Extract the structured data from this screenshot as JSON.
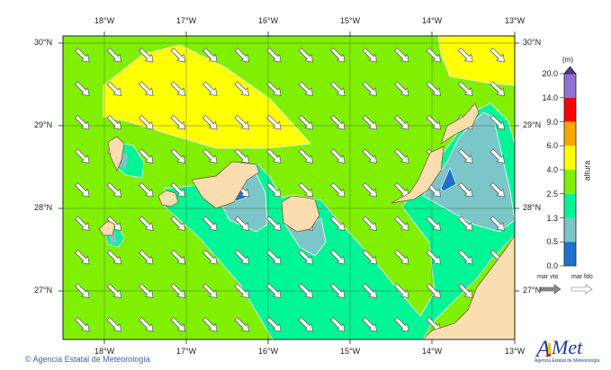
{
  "map": {
    "lon_labels": [
      "18°W",
      "17°W",
      "16°W",
      "15°W",
      "14°W",
      "13°W"
    ],
    "lat_labels": [
      "30°N",
      "29°N",
      "28°N",
      "27°N"
    ],
    "region": "Canary Islands",
    "field": "wave height",
    "arrow_meaning": "mean wave direction"
  },
  "legend": {
    "unit": "(m)",
    "title": "altura",
    "levels": [
      "0.0",
      "0.5",
      "1.3",
      "2.5",
      "4.0",
      "6.0",
      "9.0",
      "14.0",
      "20.0"
    ],
    "colors": [
      "#1f6fce",
      "#7ac6c8",
      "#00f597",
      "#80f000",
      "#ffff00",
      "#ffa500",
      "#ff0000",
      "#9070d0"
    ],
    "overflow_color": "#4a3a8a",
    "arrow_keys": [
      "mar vto",
      "mar fdo"
    ]
  },
  "colors": {
    "land": "#fbdeb0",
    "dark_blue": "#1f6fce",
    "light_blue": "#7ac6c8",
    "teal": "#00f597",
    "green": "#80f000",
    "yellow": "#ffff00"
  },
  "footer": {
    "copyright": "© Agencia Estatal de Meteorología",
    "logo_text": "AEMet",
    "logo_subtitle": "Agencia Estatal de Meteorología"
  }
}
